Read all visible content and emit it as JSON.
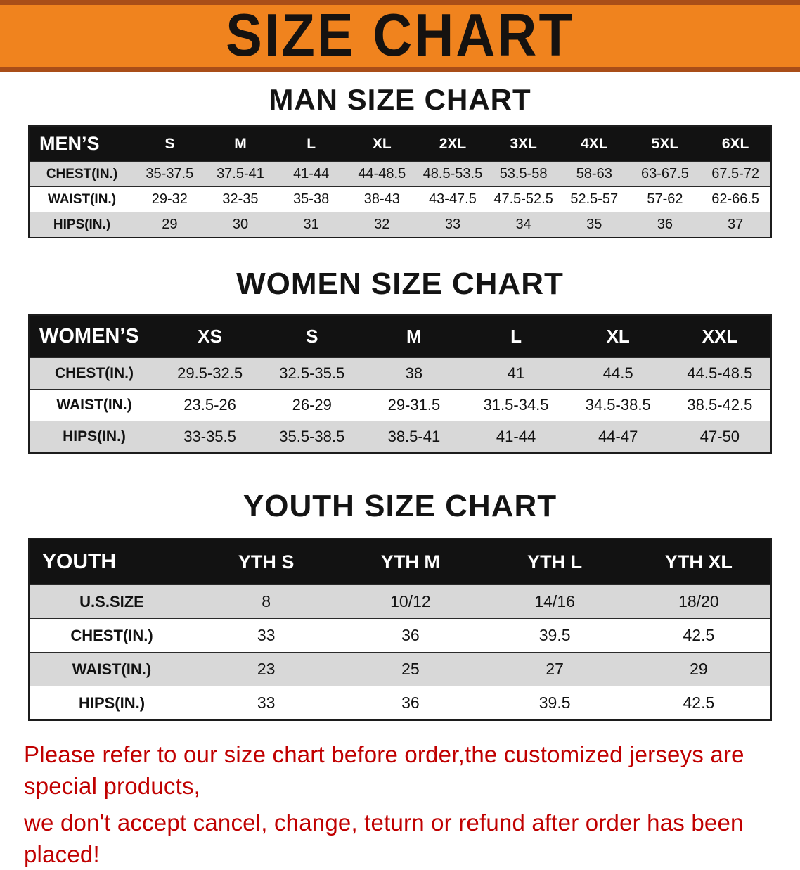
{
  "banner": {
    "title": "SIZE CHART"
  },
  "colors": {
    "banner_bg": "#F0831E",
    "banner_border": "#A94E18",
    "table_header_bg": "#121212",
    "table_header_text": "#FFFFFF",
    "row_alt_bg": "#D8D8D8",
    "notice_text": "#C00000"
  },
  "sections": {
    "men": {
      "heading": "MAN SIZE CHART",
      "table": {
        "header": [
          "MEN’S",
          "S",
          "M",
          "L",
          "XL",
          "2XL",
          "3XL",
          "4XL",
          "5XL",
          "6XL"
        ],
        "rows": [
          [
            "CHEST(IN.)",
            "35-37.5",
            "37.5-41",
            "41-44",
            "44-48.5",
            "48.5-53.5",
            "53.5-58",
            "58-63",
            "63-67.5",
            "67.5-72"
          ],
          [
            "WAIST(IN.)",
            "29-32",
            "32-35",
            "35-38",
            "38-43",
            "43-47.5",
            "47.5-52.5",
            "52.5-57",
            "57-62",
            "62-66.5"
          ],
          [
            "HIPS(IN.)",
            "29",
            "30",
            "31",
            "32",
            "33",
            "34",
            "35",
            "36",
            "37"
          ]
        ]
      }
    },
    "women": {
      "heading": "WOMEN SIZE CHART",
      "table": {
        "header": [
          "WOMEN’S",
          "XS",
          "S",
          "M",
          "L",
          "XL",
          "XXL"
        ],
        "rows": [
          [
            "CHEST(IN.)",
            "29.5-32.5",
            "32.5-35.5",
            "38",
            "41",
            "44.5",
            "44.5-48.5"
          ],
          [
            "WAIST(IN.)",
            "23.5-26",
            "26-29",
            "29-31.5",
            "31.5-34.5",
            "34.5-38.5",
            "38.5-42.5"
          ],
          [
            "HIPS(IN.)",
            "33-35.5",
            "35.5-38.5",
            "38.5-41",
            "41-44",
            "44-47",
            "47-50"
          ]
        ]
      }
    },
    "youth": {
      "heading": "YOUTH SIZE CHART",
      "table": {
        "header": [
          "YOUTH",
          "YTH S",
          "YTH M",
          "YTH L",
          "YTH XL"
        ],
        "rows": [
          [
            "U.S.SIZE",
            "8",
            "10/12",
            "14/16",
            "18/20"
          ],
          [
            "CHEST(IN.)",
            "33",
            "36",
            "39.5",
            "42.5"
          ],
          [
            "WAIST(IN.)",
            "23",
            "25",
            "27",
            "29"
          ],
          [
            "HIPS(IN.)",
            "33",
            "36",
            "39.5",
            "42.5"
          ]
        ]
      }
    }
  },
  "footer": {
    "lines": [
      "Please refer to our size chart before order,the customized jerseys are special products,",
      "we don't accept cancel, change, teturn or refund after order has been placed!"
    ]
  }
}
